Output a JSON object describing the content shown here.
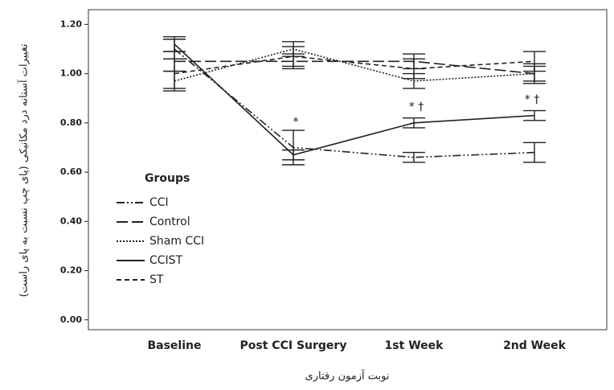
{
  "chart_data": {
    "type": "line",
    "y_label": "تغییرات آستانه درد مکانیکی (پای چپ نسبت به پای راست)",
    "x_label": "نوبت آزمون رفتاری",
    "categories": [
      "Baseline",
      "Post CCI Surgery",
      "1st Week",
      "2nd Week"
    ],
    "series": [
      {
        "name": "CCI",
        "color": "#222222",
        "dash": "10 3 2 3 2 3",
        "values": [
          1.1,
          0.7,
          0.66,
          0.68
        ],
        "errors": [
          0.04,
          0.07,
          0.02,
          0.04
        ]
      },
      {
        "name": "Control",
        "color": "#222222",
        "dash": "14 5",
        "values": [
          1.05,
          1.05,
          1.05,
          1.0
        ],
        "errors": [
          0.04,
          0.03,
          0.03,
          0.03
        ]
      },
      {
        "name": "Sham CCI",
        "color": "#222222",
        "dash": "2 2",
        "values": [
          0.97,
          1.1,
          0.97,
          1.0
        ],
        "errors": [
          0.04,
          0.03,
          0.03,
          0.04
        ]
      },
      {
        "name": "CCIST",
        "color": "#222222",
        "dash": "",
        "values": [
          1.12,
          0.67,
          0.8,
          0.83
        ],
        "errors": [
          0.03,
          0.02,
          0.02,
          0.02
        ]
      },
      {
        "name": "ST",
        "color": "#222222",
        "dash": "6 4",
        "values": [
          1.0,
          1.07,
          1.02,
          1.05
        ],
        "errors": [
          0.06,
          0.04,
          0.04,
          0.04
        ]
      }
    ],
    "annotations": [
      "*",
      "* †",
      "* †"
    ],
    "legend_title": "Groups",
    "ylim": [
      -0.04,
      1.26
    ],
    "yticks": [
      {
        "value": 0,
        "label": "0.00"
      },
      {
        "value": 0.2,
        "label": "0.20"
      },
      {
        "value": 0.4,
        "label": "0.40"
      },
      {
        "value": 0.6,
        "label": "0.60"
      },
      {
        "value": 0.8,
        "label": "0.80"
      },
      {
        "value": 1,
        "label": "1.00"
      },
      {
        "value": 1.2,
        "label": "1.20"
      }
    ]
  }
}
